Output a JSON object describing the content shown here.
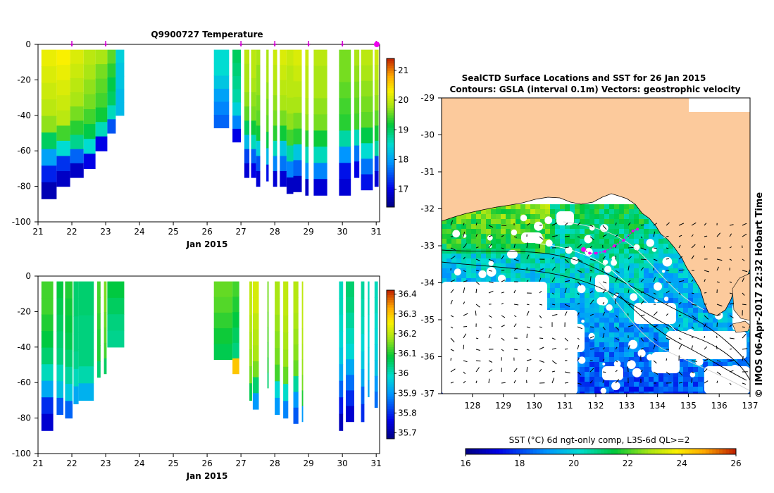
{
  "chart_data": [
    {
      "type": "heatmap",
      "title": "Q9900727  Temperature",
      "xlabel": "Jan 2015",
      "ylabel": "",
      "xlim": [
        21,
        31.1
      ],
      "ylim": [
        -100,
        0
      ],
      "xticks": [
        "21",
        "22",
        "23",
        "24",
        "25",
        "26",
        "27",
        "28",
        "29",
        "30",
        "31"
      ],
      "yticks": [
        "0",
        "-20",
        "-40",
        "-60",
        "-80",
        "-100"
      ],
      "profile_markers_x": [
        22,
        23,
        27,
        28,
        29,
        30,
        31
      ],
      "colorbar": {
        "min": 16.4,
        "max": 21.4,
        "ticks": [
          "21",
          "20",
          "19",
          "18",
          "17"
        ]
      },
      "profiles": [
        {
          "x": 21.1,
          "w": 0.45,
          "bottom": -87,
          "v": [
            20.2,
            20.1,
            20.0,
            19.9,
            19.7,
            19.0,
            18.0,
            17.2,
            16.7
          ]
        },
        {
          "x": 21.55,
          "w": 0.4,
          "bottom": -80,
          "v": [
            20.3,
            20.2,
            20.1,
            20.0,
            19.9,
            19.4,
            18.5,
            17.3,
            16.8
          ]
        },
        {
          "x": 21.95,
          "w": 0.4,
          "bottom": -75,
          "v": [
            20.1,
            20.0,
            19.9,
            19.8,
            19.6,
            19.3,
            18.8,
            17.6,
            16.8
          ]
        },
        {
          "x": 22.35,
          "w": 0.35,
          "bottom": -70,
          "v": [
            19.9,
            19.8,
            19.7,
            19.6,
            19.4,
            19.1,
            18.5,
            17.0
          ]
        },
        {
          "x": 22.7,
          "w": 0.35,
          "bottom": -60,
          "v": [
            19.8,
            19.6,
            19.5,
            19.4,
            19.2,
            18.6,
            17.0
          ]
        },
        {
          "x": 23.05,
          "w": 0.25,
          "bottom": -50,
          "v": [
            19.5,
            19.3,
            19.1,
            19.0,
            18.6,
            17.5
          ]
        },
        {
          "x": 23.3,
          "w": 0.25,
          "bottom": -40,
          "v": [
            18.4,
            18.3,
            18.3,
            18.2,
            18.2
          ]
        },
        {
          "x": 26.2,
          "w": 0.45,
          "bottom": -47,
          "v": [
            18.5,
            18.5,
            18.3,
            18.0,
            17.8,
            17.6
          ]
        },
        {
          "x": 26.75,
          "w": 0.25,
          "bottom": -55,
          "v": [
            19.0,
            18.9,
            18.8,
            18.7,
            18.4,
            17.8,
            17.0
          ]
        },
        {
          "x": 27.1,
          "w": 0.15,
          "bottom": -75,
          "v": [
            19.9,
            19.8,
            19.8,
            19.7,
            19.5,
            19.0,
            18.2,
            17.4,
            16.9
          ]
        },
        {
          "x": 27.3,
          "w": 0.15,
          "bottom": -75,
          "v": [
            19.9,
            19.9,
            19.8,
            19.7,
            19.6,
            19.2,
            18.6,
            17.6,
            17.0
          ]
        },
        {
          "x": 27.45,
          "w": 0.12,
          "bottom": -80,
          "v": [
            19.8,
            19.7,
            19.7,
            19.6,
            19.5,
            19.2,
            18.4,
            17.5,
            16.9
          ]
        },
        {
          "x": 27.75,
          "w": 0.07,
          "bottom": -77,
          "v": [
            19.8,
            19.8,
            19.7,
            19.6,
            19.5,
            19.1,
            18.2,
            17.1
          ]
        },
        {
          "x": 27.95,
          "w": 0.12,
          "bottom": -80,
          "v": [
            20.0,
            19.9,
            19.8,
            19.7,
            19.6,
            19.3,
            18.6,
            17.8,
            16.9
          ]
        },
        {
          "x": 28.15,
          "w": 0.2,
          "bottom": -80,
          "v": [
            20.1,
            20.0,
            19.9,
            19.8,
            19.6,
            19.2,
            18.3,
            17.7,
            16.9
          ]
        },
        {
          "x": 28.35,
          "w": 0.2,
          "bottom": -84,
          "v": [
            20.0,
            19.9,
            19.9,
            19.8,
            19.7,
            19.4,
            18.7,
            17.8,
            16.8
          ]
        },
        {
          "x": 28.55,
          "w": 0.25,
          "bottom": -83,
          "v": [
            20.1,
            20.0,
            19.9,
            19.8,
            19.6,
            19.3,
            18.3,
            17.6,
            16.8
          ]
        },
        {
          "x": 28.9,
          "w": 0.1,
          "bottom": -85,
          "v": [
            20.0,
            19.9,
            19.9,
            19.8,
            19.7,
            19.3,
            18.6,
            17.9,
            16.8
          ]
        },
        {
          "x": 29.15,
          "w": 0.4,
          "bottom": -85,
          "v": [
            19.9,
            19.8,
            19.8,
            19.7,
            19.6,
            19.2,
            18.6,
            17.8,
            16.9
          ]
        },
        {
          "x": 29.9,
          "w": 0.35,
          "bottom": -85,
          "v": [
            19.6,
            19.6,
            19.5,
            19.4,
            19.3,
            18.7,
            17.9,
            17.1,
            16.9
          ]
        },
        {
          "x": 30.35,
          "w": 0.15,
          "bottom": -75,
          "v": [
            19.8,
            19.7,
            19.6,
            19.5,
            19.4,
            18.6,
            17.7,
            17.0
          ]
        },
        {
          "x": 30.55,
          "w": 0.35,
          "bottom": -82,
          "v": [
            19.9,
            19.8,
            19.7,
            19.6,
            19.5,
            19.1,
            18.5,
            17.7,
            17.1
          ]
        },
        {
          "x": 30.95,
          "w": 0.12,
          "bottom": -80,
          "v": [
            20.0,
            19.9,
            19.8,
            19.7,
            19.5,
            19.2,
            18.7,
            17.4,
            16.9
          ]
        }
      ]
    },
    {
      "type": "heatmap",
      "title": "",
      "xlabel": "Jan 2015",
      "ylabel": "",
      "xlim": [
        21,
        31.1
      ],
      "ylim": [
        -100,
        0
      ],
      "xticks": [
        "21",
        "22",
        "23",
        "24",
        "25",
        "26",
        "27",
        "28",
        "29",
        "30",
        "31"
      ],
      "yticks": [
        "0",
        "-20",
        "-40",
        "-60",
        "-80",
        "-100"
      ],
      "colorbar": {
        "min": 35.67,
        "max": 36.42,
        "ticks": [
          "36.4",
          "36.3",
          "36.2",
          "36.1",
          "36",
          "35.9",
          "35.8",
          "35.7"
        ]
      },
      "profiles": [
        {
          "x": 21.1,
          "w": 0.35,
          "bottom": -87,
          "v": [
            36.12,
            36.12,
            36.1,
            36.08,
            36.05,
            36.0,
            35.92,
            35.8,
            35.74
          ]
        },
        {
          "x": 21.55,
          "w": 0.2,
          "bottom": -78,
          "v": [
            36.08,
            36.07,
            36.06,
            36.05,
            36.04,
            36.0,
            35.95,
            35.84
          ]
        },
        {
          "x": 21.8,
          "w": 0.22,
          "bottom": -80,
          "v": [
            36.1,
            36.09,
            36.08,
            36.07,
            36.05,
            36.02,
            35.96,
            35.85
          ]
        },
        {
          "x": 22.05,
          "w": 0.15,
          "bottom": -72,
          "v": [
            36.05,
            36.05,
            36.04,
            36.04,
            36.03,
            36.0,
            35.92
          ]
        },
        {
          "x": 22.2,
          "w": 0.45,
          "bottom": -70,
          "v": [
            36.05,
            36.05,
            36.04,
            36.04,
            36.04,
            36.01,
            35.93
          ]
        },
        {
          "x": 22.75,
          "w": 0.1,
          "bottom": -57,
          "v": [
            36.12,
            36.12,
            36.11,
            36.1,
            36.1,
            36.05
          ]
        },
        {
          "x": 22.95,
          "w": 0.08,
          "bottom": -55,
          "v": [
            36.15,
            36.15,
            36.14,
            36.13,
            36.12,
            36.06
          ]
        },
        {
          "x": 23.05,
          "w": 0.5,
          "bottom": -40,
          "v": [
            36.08,
            36.06,
            36.04,
            36.03
          ]
        },
        {
          "x": 26.2,
          "w": 0.55,
          "bottom": -47,
          "v": [
            36.14,
            36.13,
            36.11,
            36.09,
            36.07
          ]
        },
        {
          "x": 26.75,
          "w": 0.2,
          "bottom": -55,
          "v": [
            36.12,
            36.1,
            36.08,
            36.06,
            36.04,
            36.3
          ]
        },
        {
          "x": 27.25,
          "w": 0.08,
          "bottom": -70,
          "v": [
            36.2,
            36.2,
            36.19,
            36.18,
            36.17,
            36.15,
            36.07
          ]
        },
        {
          "x": 27.35,
          "w": 0.18,
          "bottom": -75,
          "v": [
            36.22,
            36.22,
            36.2,
            36.19,
            36.18,
            36.15,
            36.05,
            35.9
          ]
        },
        {
          "x": 27.78,
          "w": 0.04,
          "bottom": -63,
          "v": [
            36.15,
            36.15,
            36.14,
            36.13,
            36.12,
            36.1,
            36.05
          ]
        },
        {
          "x": 28.0,
          "w": 0.15,
          "bottom": -78,
          "v": [
            36.18,
            36.18,
            36.17,
            36.16,
            36.15,
            36.12,
            35.98,
            35.9
          ]
        },
        {
          "x": 28.25,
          "w": 0.15,
          "bottom": -80,
          "v": [
            36.2,
            36.2,
            36.19,
            36.18,
            36.17,
            36.14,
            35.99,
            35.88
          ]
        },
        {
          "x": 28.55,
          "w": 0.15,
          "bottom": -83,
          "v": [
            36.19,
            36.19,
            36.18,
            36.17,
            36.16,
            36.14,
            36.02,
            35.9,
            35.84
          ]
        },
        {
          "x": 28.8,
          "w": 0.04,
          "bottom": -82,
          "v": [
            36.2,
            36.2,
            36.2,
            36.19,
            36.18,
            36.17,
            36.15,
            36.1,
            35.9
          ]
        },
        {
          "x": 29.9,
          "w": 0.12,
          "bottom": -87,
          "v": [
            36.0,
            36.0,
            35.99,
            35.98,
            35.96,
            35.92,
            35.85,
            35.78,
            35.72
          ]
        },
        {
          "x": 30.1,
          "w": 0.25,
          "bottom": -82,
          "v": [
            36.05,
            36.04,
            36.02,
            36.0,
            35.98,
            35.92,
            35.86,
            35.8,
            35.74
          ]
        },
        {
          "x": 30.55,
          "w": 0.1,
          "bottom": -82,
          "v": [
            36.02,
            36.01,
            36.0,
            35.98,
            35.96,
            35.92,
            35.85,
            35.8
          ]
        },
        {
          "x": 30.75,
          "w": 0.05,
          "bottom": -68,
          "v": [
            36.0,
            36.0,
            35.99,
            35.98,
            35.97,
            35.96,
            35.92
          ]
        },
        {
          "x": 30.95,
          "w": 0.1,
          "bottom": -74,
          "v": [
            36.0,
            36.0,
            35.99,
            35.98,
            35.97,
            35.95,
            35.9,
            35.86
          ]
        }
      ]
    },
    {
      "type": "map",
      "title": "SealCTD Surface Locations and SST for 26 Jan 2015",
      "subtitle": "Contours: GSLA (interval 0.1m) Vectors: geostrophic velocity",
      "xlim": [
        127,
        137
      ],
      "ylim": [
        -37,
        -29
      ],
      "xticks": [
        "128",
        "129",
        "130",
        "131",
        "132",
        "133",
        "134",
        "135",
        "136",
        "137"
      ],
      "yticks": [
        "-29",
        "-30",
        "-31",
        "-32",
        "-33",
        "-34",
        "-35",
        "-36",
        "-37"
      ],
      "colorbar": {
        "min": 16,
        "max": 26,
        "label": "SST (°C) 6d ngt-only comp, L3S-6d QL>=2",
        "ticks": [
          "16",
          "18",
          "20",
          "22",
          "24",
          "26"
        ]
      },
      "track": [
        [
          131.6,
          -33.1
        ],
        [
          131.8,
          -33.2
        ],
        [
          132.0,
          -33.2
        ],
        [
          132.3,
          -33.15
        ],
        [
          132.6,
          -33.0
        ],
        [
          132.9,
          -32.85
        ],
        [
          133.2,
          -32.6
        ],
        [
          133.35,
          -32.55
        ]
      ],
      "stamp": "© IMOS 06-Apr-2017 22:32 Hobart Time"
    }
  ]
}
